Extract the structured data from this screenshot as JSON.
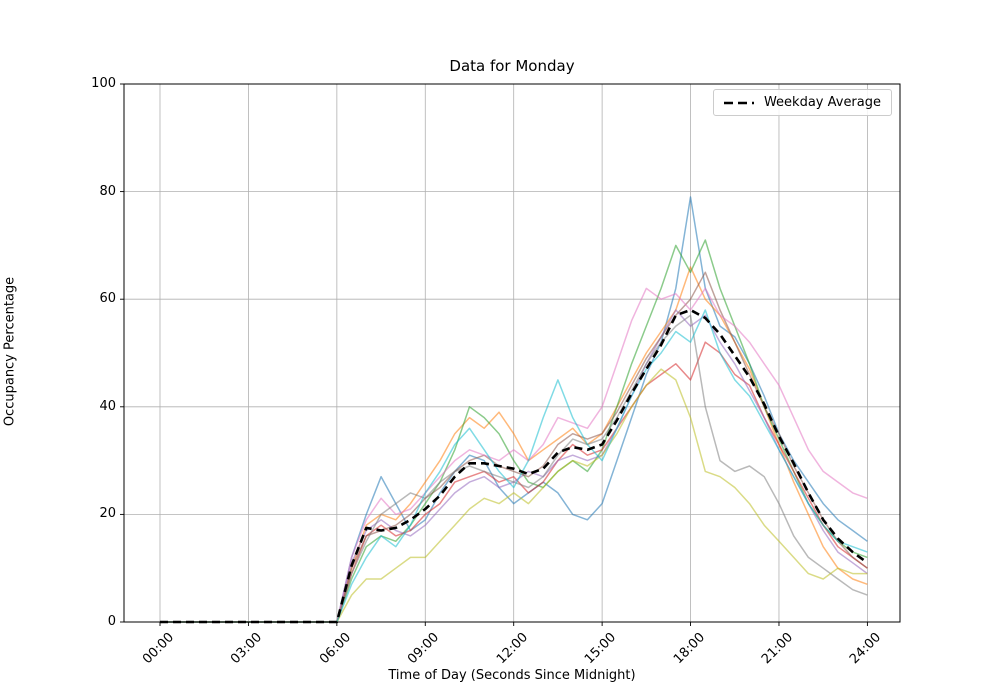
{
  "chart_data": {
    "type": "line",
    "title": "Data for Monday",
    "xlabel": "Time of Day (Seconds Since Midnight)",
    "ylabel": "Occupancy Percentage",
    "legend_label": "Weekday Average",
    "legend_position": "upper right",
    "grid": true,
    "ylim": [
      0,
      100
    ],
    "xlim_hours": [
      -1.2,
      25.2
    ],
    "y_ticks": [
      0,
      20,
      40,
      60,
      80,
      100
    ],
    "y_tick_labels": [
      "0",
      "20",
      "40",
      "60",
      "80",
      "100"
    ],
    "x_tick_hours": [
      0,
      3,
      6,
      9,
      12,
      15,
      18,
      21,
      24
    ],
    "x_tick_labels": [
      "00:00",
      "03:00",
      "06:00",
      "09:00",
      "12:00",
      "15:00",
      "18:00",
      "21:00",
      "24:00"
    ],
    "x_hours": [
      0,
      0.5,
      1,
      1.5,
      2,
      2.5,
      3,
      3.5,
      4,
      4.5,
      5,
      5.5,
      6,
      6.5,
      7,
      7.5,
      8,
      8.5,
      9,
      9.5,
      10,
      10.5,
      11,
      11.5,
      12,
      12.5,
      13,
      13.5,
      14,
      14.5,
      15,
      15.5,
      16,
      16.5,
      17,
      17.5,
      18,
      18.5,
      19,
      19.5,
      20,
      20.5,
      21,
      21.5,
      22,
      22.5,
      23,
      23.5,
      24
    ],
    "line_opacity": 0.55,
    "series": [
      {
        "name": "trace-1-blue",
        "color": "#1f77b4",
        "values": [
          0,
          0,
          0,
          0,
          0,
          0,
          0,
          0,
          0,
          0,
          0,
          0,
          0,
          12,
          20,
          27,
          22,
          17,
          19,
          24,
          28,
          31,
          30,
          25,
          22,
          24,
          26,
          24,
          20,
          19,
          22,
          30,
          38,
          46,
          52,
          62,
          79,
          62,
          55,
          53,
          48,
          42,
          35,
          30,
          26,
          22,
          19,
          17,
          15
        ]
      },
      {
        "name": "trace-2-orange",
        "color": "#ff7f0e",
        "values": [
          0,
          0,
          0,
          0,
          0,
          0,
          0,
          0,
          0,
          0,
          0,
          0,
          0,
          10,
          18,
          20,
          19,
          22,
          26,
          30,
          35,
          38,
          36,
          39,
          35,
          30,
          32,
          34,
          36,
          33,
          35,
          40,
          45,
          50,
          54,
          58,
          66,
          60,
          57,
          52,
          47,
          40,
          33,
          26,
          20,
          14,
          10,
          8,
          7
        ]
      },
      {
        "name": "trace-3-green",
        "color": "#2ca02c",
        "values": [
          0,
          0,
          0,
          0,
          0,
          0,
          0,
          0,
          0,
          0,
          0,
          0,
          0,
          8,
          14,
          16,
          15,
          18,
          22,
          26,
          32,
          40,
          38,
          35,
          30,
          26,
          25,
          28,
          30,
          28,
          32,
          40,
          48,
          55,
          62,
          70,
          65,
          71,
          62,
          55,
          48,
          40,
          34,
          28,
          22,
          18,
          15,
          13,
          12
        ]
      },
      {
        "name": "trace-4-red",
        "color": "#d62728",
        "values": [
          0,
          0,
          0,
          0,
          0,
          0,
          0,
          0,
          0,
          0,
          0,
          0,
          0,
          9,
          16,
          18,
          16,
          17,
          20,
          22,
          26,
          27,
          28,
          26,
          27,
          24,
          26,
          30,
          33,
          31,
          32,
          36,
          40,
          44,
          46,
          48,
          45,
          52,
          50,
          46,
          44,
          38,
          33,
          28,
          23,
          18,
          14,
          12,
          10
        ]
      },
      {
        "name": "trace-5-purple",
        "color": "#9467bd",
        "values": [
          0,
          0,
          0,
          0,
          0,
          0,
          0,
          0,
          0,
          0,
          0,
          0,
          0,
          11,
          17,
          19,
          17,
          16,
          18,
          21,
          24,
          26,
          27,
          25,
          26,
          28,
          27,
          30,
          31,
          30,
          31,
          36,
          42,
          48,
          53,
          58,
          55,
          57,
          52,
          48,
          43,
          38,
          32,
          27,
          22,
          17,
          13,
          11,
          9
        ]
      },
      {
        "name": "trace-6-brown",
        "color": "#8c564b",
        "values": [
          0,
          0,
          0,
          0,
          0,
          0,
          0,
          0,
          0,
          0,
          0,
          0,
          0,
          10,
          16,
          17,
          18,
          20,
          23,
          25,
          28,
          30,
          31,
          29,
          28,
          27,
          29,
          33,
          35,
          34,
          35,
          39,
          44,
          49,
          53,
          57,
          60,
          65,
          58,
          52,
          46,
          40,
          35,
          29,
          24,
          19,
          15,
          12,
          10
        ]
      },
      {
        "name": "trace-7-pink",
        "color": "#e377c2",
        "values": [
          0,
          0,
          0,
          0,
          0,
          0,
          0,
          0,
          0,
          0,
          0,
          0,
          0,
          12,
          19,
          23,
          20,
          21,
          24,
          27,
          30,
          32,
          31,
          30,
          32,
          30,
          33,
          38,
          37,
          36,
          40,
          48,
          56,
          62,
          60,
          61,
          58,
          62,
          57,
          55,
          52,
          48,
          44,
          38,
          32,
          28,
          26,
          24,
          23
        ]
      },
      {
        "name": "trace-8-gray",
        "color": "#7f7f7f",
        "values": [
          0,
          0,
          0,
          0,
          0,
          0,
          0,
          0,
          0,
          0,
          0,
          0,
          0,
          9,
          15,
          20,
          22,
          24,
          23,
          26,
          28,
          29,
          28,
          27,
          26,
          25,
          27,
          31,
          34,
          33,
          34,
          38,
          43,
          48,
          52,
          55,
          57,
          40,
          30,
          28,
          29,
          27,
          22,
          16,
          12,
          10,
          8,
          6,
          5
        ]
      },
      {
        "name": "trace-9-olive",
        "color": "#bcbd22",
        "values": [
          0,
          0,
          0,
          0,
          0,
          0,
          0,
          0,
          0,
          0,
          0,
          0,
          0,
          5,
          8,
          8,
          10,
          12,
          12,
          15,
          18,
          21,
          23,
          22,
          24,
          22,
          25,
          28,
          30,
          29,
          31,
          35,
          40,
          44,
          47,
          45,
          38,
          28,
          27,
          25,
          22,
          18,
          15,
          12,
          9,
          8,
          10,
          9,
          9
        ]
      },
      {
        "name": "trace-10-cyan",
        "color": "#17becf",
        "values": [
          0,
          0,
          0,
          0,
          0,
          0,
          0,
          0,
          0,
          0,
          0,
          0,
          0,
          7,
          12,
          16,
          14,
          18,
          24,
          28,
          33,
          36,
          32,
          28,
          25,
          30,
          38,
          45,
          38,
          33,
          30,
          36,
          42,
          47,
          50,
          54,
          52,
          58,
          50,
          45,
          42,
          37,
          32,
          27,
          22,
          18,
          15,
          14,
          13
        ]
      }
    ],
    "average": {
      "name": "Weekday Average",
      "color": "#000000",
      "line_style": "dashed",
      "values": [
        0,
        0,
        0,
        0,
        0,
        0,
        0,
        0,
        0,
        0,
        0,
        0,
        0,
        10.5,
        17.5,
        17,
        17.5,
        19,
        21,
        23.5,
        27,
        29.5,
        29.5,
        29,
        28.5,
        27.5,
        28.5,
        31.5,
        32.5,
        32,
        33,
        37.5,
        42.5,
        47,
        51.5,
        57,
        58,
        56.5,
        53.5,
        49.5,
        45.5,
        40.5,
        34.5,
        29.5,
        24,
        19,
        15.5,
        13,
        11
      ]
    },
    "style": {
      "grid_color": "#b0b0b0",
      "spine_color": "#000000",
      "background": "#ffffff"
    }
  }
}
